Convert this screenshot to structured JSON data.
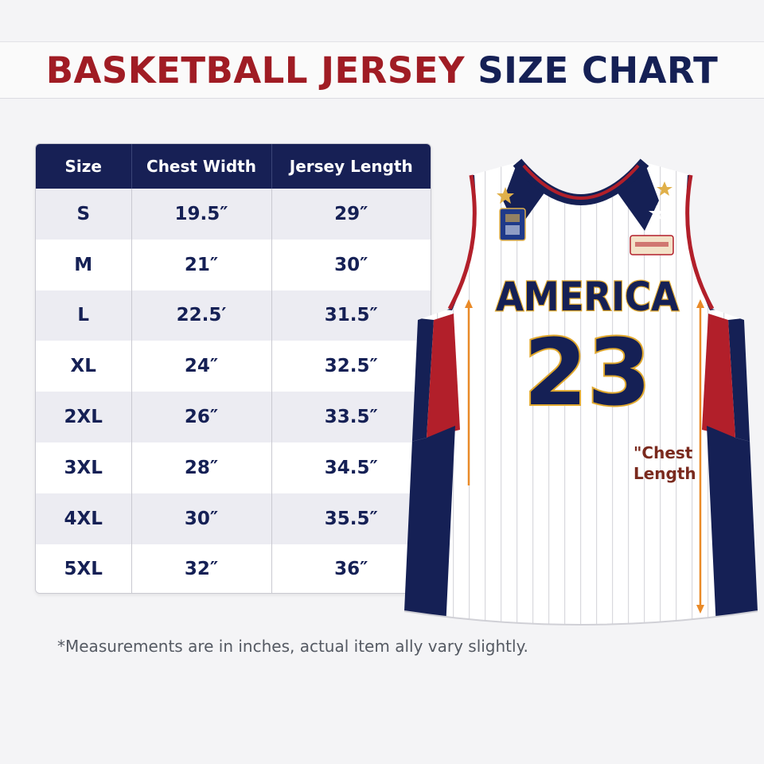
{
  "title": {
    "part1": "BASKETBALL JERSEY",
    "part2": "SIZE CHART",
    "color1": "#a01c24",
    "color2": "#152055"
  },
  "table": {
    "headers": [
      "Size",
      "Chest Width",
      "Jersey Length"
    ],
    "rows": [
      [
        "S",
        "19.5″",
        "29″"
      ],
      [
        "M",
        "21″",
        "30″"
      ],
      [
        "L",
        "22.5′",
        "31.5″"
      ],
      [
        "XL",
        "24″",
        "32.5″"
      ],
      [
        "2XL",
        "26″",
        "33.5″"
      ],
      [
        "3XL",
        "28″",
        "34.5″"
      ],
      [
        "4XL",
        "30″",
        "35.5″"
      ],
      [
        "5XL",
        "32″",
        "36″"
      ]
    ]
  },
  "jersey": {
    "chest_text": "AMERICA",
    "number": "23",
    "annotation_line1": "\"Chest",
    "annotation_line2": "Length",
    "arrow_color": "#e98a28"
  },
  "footnote": "*Measurements are in inches, actual item ally vary slightly."
}
